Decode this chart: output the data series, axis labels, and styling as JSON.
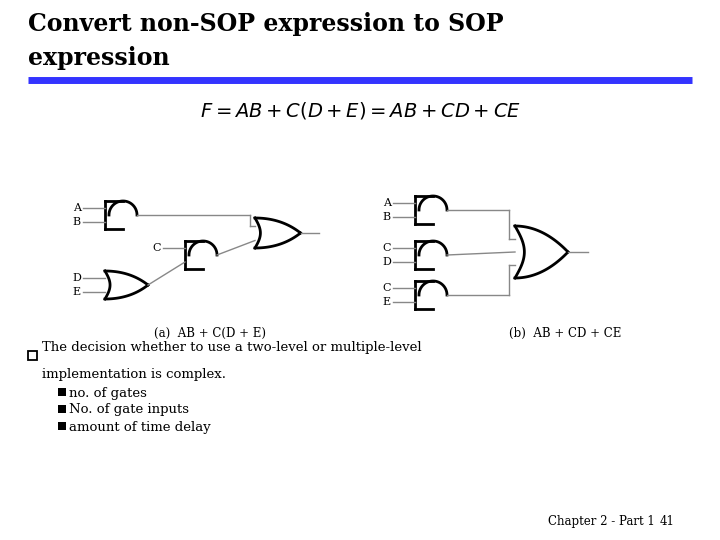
{
  "title_line1": "Convert non-SOP expression to SOP",
  "title_line2": "expression",
  "title_fontsize": 17,
  "title_color": "#000000",
  "blue_line_color": "#3333ff",
  "caption_a": "(a)  AB + C(D + E)",
  "caption_b": "(b)  AB + CD + CE",
  "bullet_char": "□",
  "bullet_text1": "The decision whether to use a two-level or multiple-level",
  "bullet_text2": "implementation is complex.",
  "sub_bullets": [
    "no. of gates",
    "No. of gate inputs",
    "amount of time delay"
  ],
  "footer": "Chapter 2 - Part 1",
  "page_num": "41",
  "bg_color": "#ffffff",
  "text_color": "#000000",
  "gate_lw": 2.0,
  "wire_lw": 1.0,
  "gate_color": "#000000",
  "wire_color": "#888888"
}
